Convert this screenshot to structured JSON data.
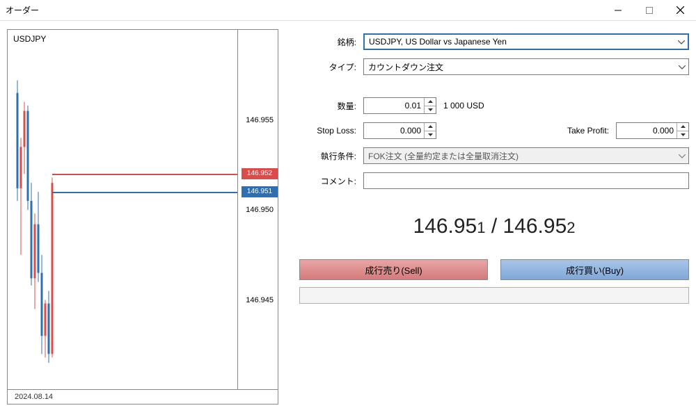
{
  "window": {
    "title": "オーダー"
  },
  "chart": {
    "symbol": "USDJPY",
    "date": "2024.08.14",
    "ymin": 146.94,
    "ymax": 146.96,
    "yticks": [
      146.955,
      146.95,
      146.945
    ],
    "ask_line": {
      "price": 146.952,
      "color": "#d84c4c",
      "label": "146.952"
    },
    "bid_line": {
      "price": 146.951,
      "color": "#2f6fb0",
      "label": "146.951"
    },
    "candles": [
      {
        "x": 14,
        "o": 146.9565,
        "h": 146.9572,
        "l": 146.9505,
        "c": 146.9512,
        "col": "#2f6fb0"
      },
      {
        "x": 19,
        "o": 146.9512,
        "h": 146.954,
        "l": 146.9475,
        "c": 146.9535,
        "col": "#d84c4c"
      },
      {
        "x": 24,
        "o": 146.9535,
        "h": 146.956,
        "l": 146.952,
        "c": 146.9555,
        "col": "#d84c4c"
      },
      {
        "x": 29,
        "o": 146.9555,
        "h": 146.9558,
        "l": 146.95,
        "c": 146.9505,
        "col": "#2f6fb0"
      },
      {
        "x": 34,
        "o": 146.9505,
        "h": 146.9515,
        "l": 146.9458,
        "c": 146.9462,
        "col": "#2f6fb0"
      },
      {
        "x": 39,
        "o": 146.9462,
        "h": 146.9498,
        "l": 146.9445,
        "c": 146.9492,
        "col": "#d84c4c"
      },
      {
        "x": 44,
        "o": 146.9492,
        "h": 146.951,
        "l": 146.946,
        "c": 146.9465,
        "col": "#2f6fb0"
      },
      {
        "x": 49,
        "o": 146.9465,
        "h": 146.9475,
        "l": 146.942,
        "c": 146.943,
        "col": "#2f6fb0"
      },
      {
        "x": 54,
        "o": 146.943,
        "h": 146.945,
        "l": 146.9418,
        "c": 146.9448,
        "col": "#d84c4c"
      },
      {
        "x": 59,
        "o": 146.9448,
        "h": 146.9455,
        "l": 146.9415,
        "c": 146.942,
        "col": "#2f6fb0"
      },
      {
        "x": 64,
        "o": 146.942,
        "h": 146.9518,
        "l": 146.9418,
        "c": 146.9515,
        "col": "#d84c4c"
      }
    ]
  },
  "form": {
    "labels": {
      "symbol": "銘柄:",
      "type": "タイプ:",
      "volume": "数量:",
      "sl": "Stop Loss:",
      "tp": "Take Profit:",
      "fill": "執行条件:",
      "comment": "コメント:"
    },
    "symbol_value": "USDJPY, US Dollar vs Japanese Yen",
    "type_value": "カウントダウン注文",
    "volume_value": "0.01",
    "volume_after": "1 000 USD",
    "sl_value": "0.000",
    "tp_value": "0.000",
    "fill_value": "FOK注文 (全量約定または全量取消注文)",
    "comment_value": ""
  },
  "prices": {
    "bid_main": "146.95",
    "bid_last": "1",
    "ask_main": "146.95",
    "ask_last": "2",
    "sep": " / "
  },
  "buttons": {
    "sell": "成行売り(Sell)",
    "buy": "成行買い(Buy)"
  },
  "colors": {
    "ask": "#d84c4c",
    "bid": "#2f6fb0"
  }
}
